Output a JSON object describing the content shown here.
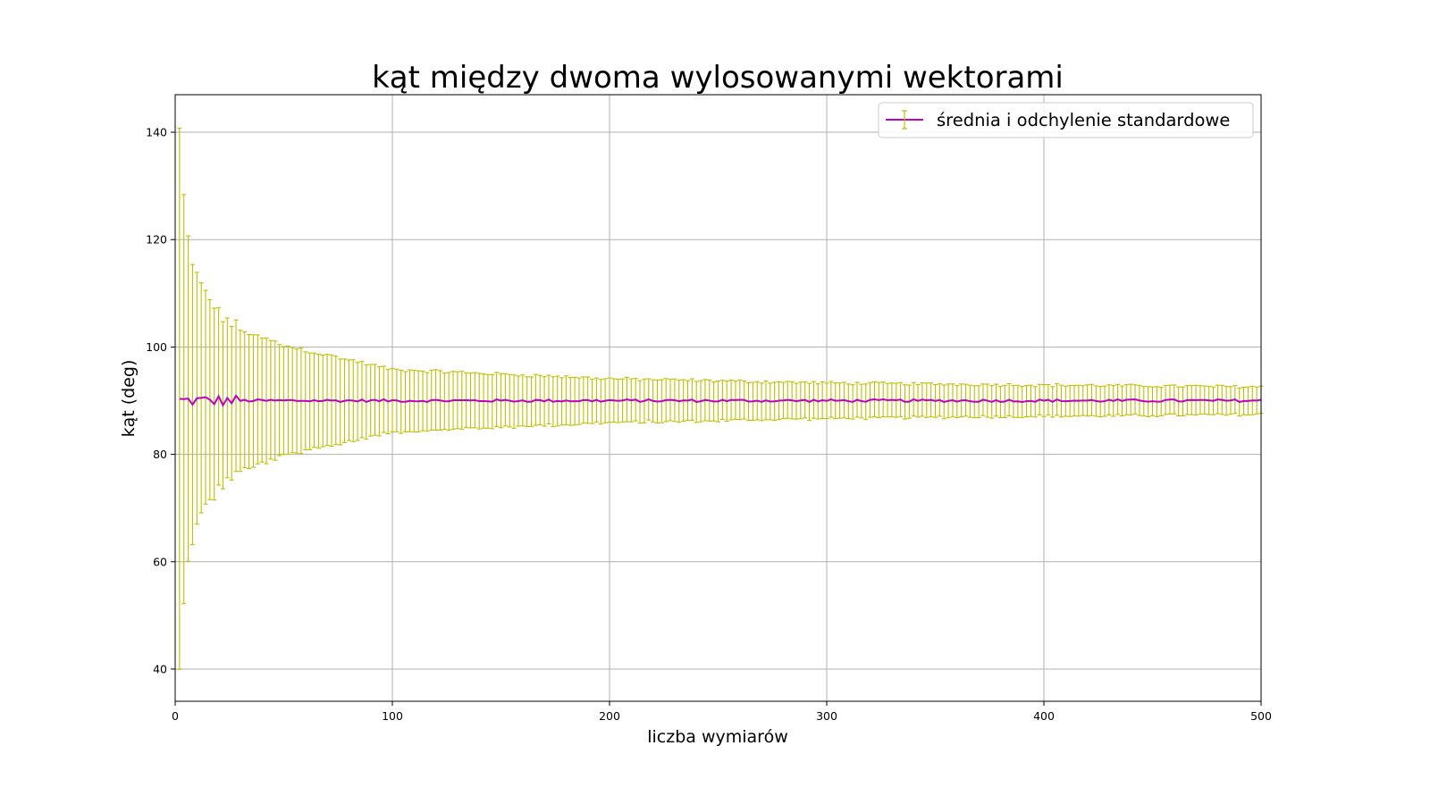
{
  "chart_data": {
    "type": "line",
    "title": "kąt między dwoma wylosowanymi wektorami",
    "xlabel": "liczba wymiarów",
    "ylabel": "kąt (deg)",
    "xlim": [
      0,
      500
    ],
    "ylim": [
      34,
      147
    ],
    "xticks": [
      0,
      100,
      200,
      300,
      400,
      500
    ],
    "yticks": [
      40,
      60,
      80,
      100,
      120,
      140
    ],
    "grid": true,
    "legend_position": "top-right",
    "series": [
      {
        "name": "średnia i odchylenie standardowe",
        "line_color": "#bf00bf",
        "errorbar_color": "#bfbf00",
        "x_start": 2,
        "x_end": 500,
        "x_step": 2,
        "mean_approx": 90,
        "std_samples": [
          {
            "x": 2,
            "std": 51
          },
          {
            "x": 4,
            "std": 37
          },
          {
            "x": 6,
            "std": 30
          },
          {
            "x": 8,
            "std": 25.5
          },
          {
            "x": 10,
            "std": 23
          },
          {
            "x": 20,
            "std": 16.2
          },
          {
            "x": 30,
            "std": 13.2
          },
          {
            "x": 50,
            "std": 10.3
          },
          {
            "x": 100,
            "std": 5.8
          },
          {
            "x": 200,
            "std": 4.1
          },
          {
            "x": 300,
            "std": 3.3
          },
          {
            "x": 400,
            "std": 2.9
          },
          {
            "x": 500,
            "std": 2.6
          }
        ]
      }
    ]
  }
}
